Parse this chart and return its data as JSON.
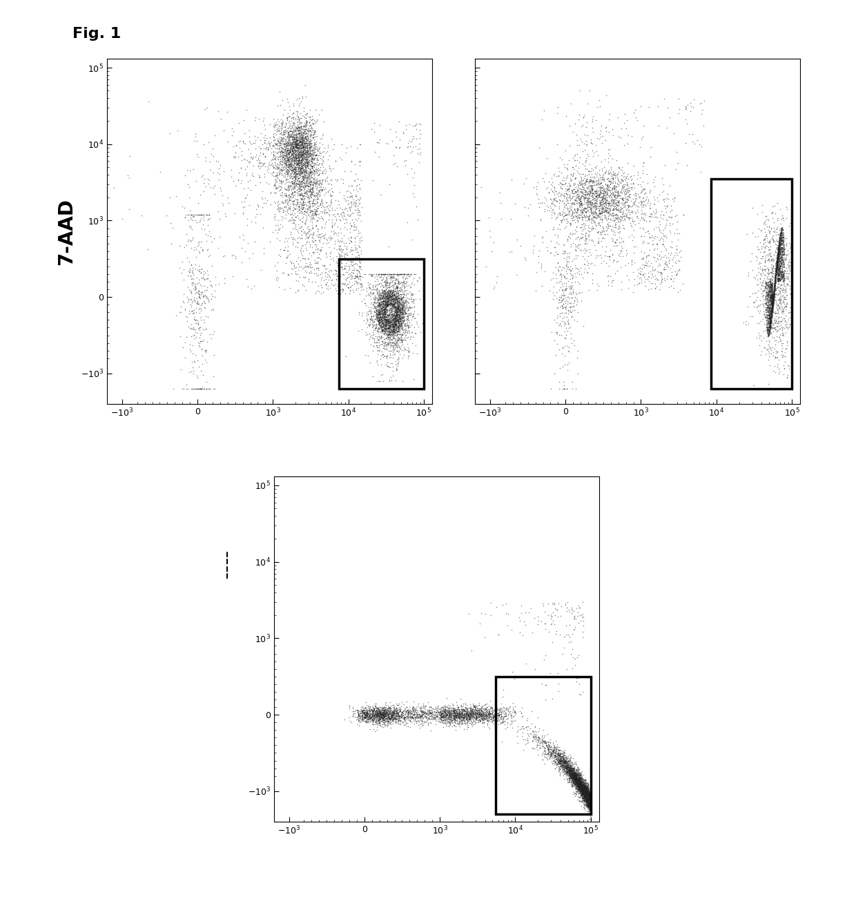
{
  "fig_label": "Fig. 1",
  "fig_label_fontsize": 16,
  "fig_label_fontweight": "bold",
  "background_color": "#ffffff",
  "dot_color": "#222222",
  "dot_size": 1.2,
  "dot_alpha": 0.55,
  "dense_dot_color": "#888888",
  "gate_color": "#000000",
  "gate_linewidth": 2.5,
  "ylabel": "7-AAD",
  "ylabel_fontsize": 20,
  "ylabel_fontweight": "bold",
  "axis_tick_fontsize": 9,
  "seed1": 42,
  "seed2": 99,
  "seed3": 7,
  "tick_labels": [
    "-10^3",
    "0",
    "10^3",
    "10^4",
    "10^5"
  ],
  "tick_values": [
    -1000,
    0,
    1000,
    10000,
    100000
  ]
}
